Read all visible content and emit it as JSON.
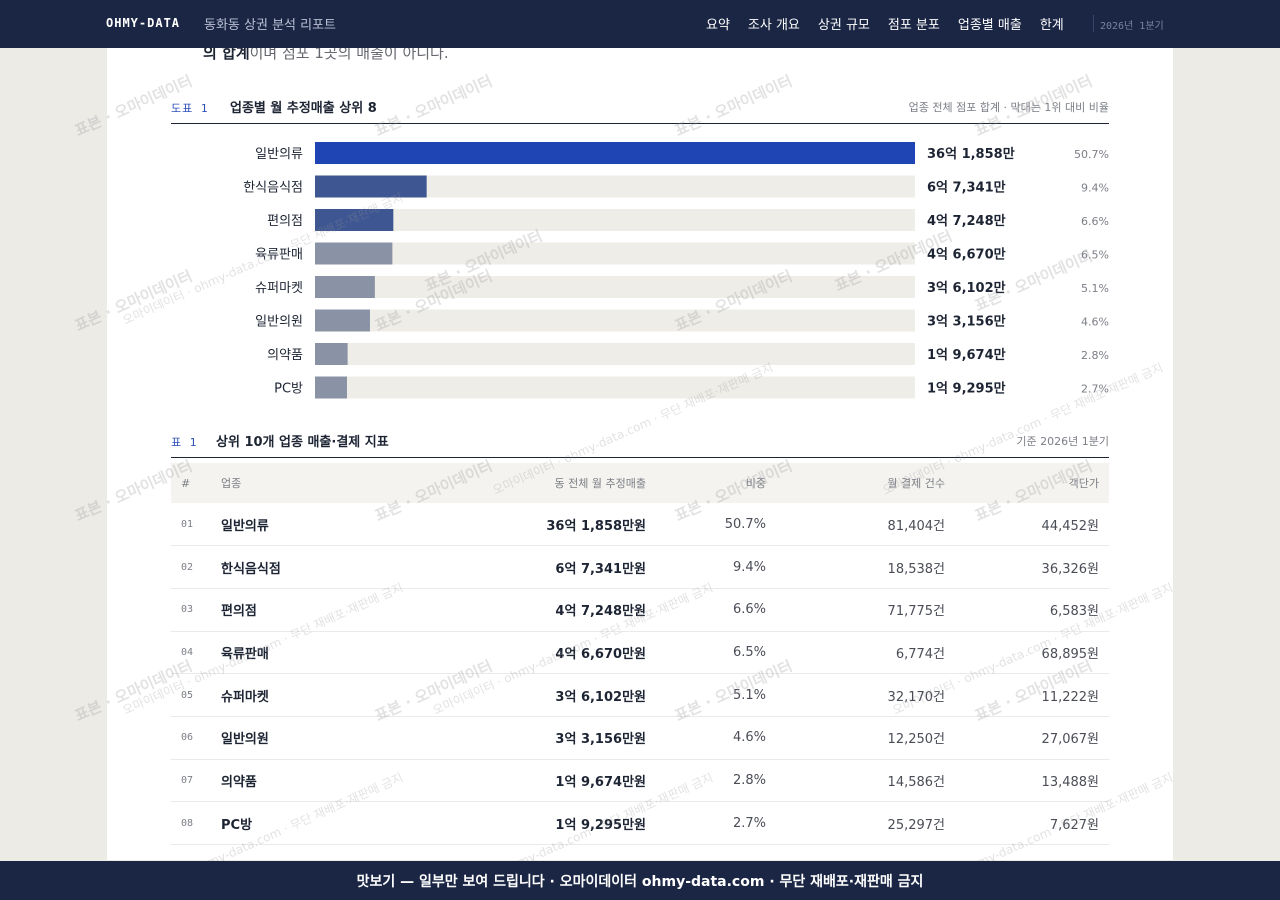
{
  "header": {
    "brand": "OHMY-DATA",
    "report_title": "동화동 상권 분석 리포트",
    "nav": [
      "요약",
      "조사 개요",
      "상권 규모",
      "점포 분포",
      "업종별 매출",
      "한계"
    ],
    "period": "2026년 1분기"
  },
  "intro_fragment": {
    "bold": "의 합계",
    "rest": "이며 점포 1곳의 매출이 아니다."
  },
  "figure": {
    "number": "도표 1",
    "title": "업종별 월 추정매출 상위 8",
    "note": "업종 전체 점포 합계 · 막대는 1위 대비 비율"
  },
  "chart_data": {
    "type": "bar",
    "orientation": "horizontal",
    "title": "업종별 월 추정매출 상위 8",
    "categories": [
      "일반의류",
      "한식음식점",
      "편의점",
      "육류판매",
      "슈퍼마켓",
      "일반의원",
      "의약품",
      "PC방"
    ],
    "values": [
      361858,
      67341,
      47248,
      46670,
      36102,
      33156,
      19674,
      19295
    ],
    "value_labels": [
      "36억 1,858만",
      "6억 7,341만",
      "4억 7,248만",
      "4억 6,670만",
      "3억 6,102만",
      "3억 3,156만",
      "1억 9,674만",
      "1억 9,295만"
    ],
    "shares": [
      "50.7%",
      "9.4%",
      "6.6%",
      "6.5%",
      "5.1%",
      "4.6%",
      "2.8%",
      "2.7%"
    ],
    "colors": [
      "#1f45b5",
      "#3e5691",
      "#3e5691",
      "#8a93a6",
      "#8a93a6",
      "#8a93a6",
      "#8a93a6",
      "#8a93a6"
    ],
    "track_color": "#efede7",
    "xlim": [
      0,
      361858
    ]
  },
  "table": {
    "number": "표 1",
    "title": "상위 10개 업종 매출·결제 지표",
    "note": "기준 2026년 1분기",
    "columns": [
      "#",
      "업종",
      "동 전체 월 추정매출",
      "비중",
      "월 결제 건수",
      "객단가"
    ],
    "rows": [
      [
        "01",
        "일반의류",
        "36억 1,858만원",
        "50.7%",
        "81,404건",
        "44,452원"
      ],
      [
        "02",
        "한식음식점",
        "6억 7,341만원",
        "9.4%",
        "18,538건",
        "36,326원"
      ],
      [
        "03",
        "편의점",
        "4억 7,248만원",
        "6.6%",
        "71,775건",
        "6,583원"
      ],
      [
        "04",
        "육류판매",
        "4억 6,670만원",
        "6.5%",
        "6,774건",
        "68,895원"
      ],
      [
        "05",
        "슈퍼마켓",
        "3억 6,102만원",
        "5.1%",
        "32,170건",
        "11,222원"
      ],
      [
        "06",
        "일반의원",
        "3억 3,156만원",
        "4.6%",
        "12,250건",
        "27,067원"
      ],
      [
        "07",
        "의약품",
        "1억 9,674만원",
        "2.8%",
        "14,586건",
        "13,488원"
      ],
      [
        "08",
        "PC방",
        "1억 9,295만원",
        "2.7%",
        "25,297건",
        "7,627원"
      ]
    ]
  },
  "watermark": {
    "sample": "표본 · 오마이데이터",
    "brand": "오마이데이터 · ohmy-data.com · 무단 재배포·재판매 금지"
  },
  "footer": {
    "text": "맛보기 — 일부만 보여 드립니다 · 오마이데이터 ohmy-data.com · 무단 재배포·재판매 금지"
  }
}
